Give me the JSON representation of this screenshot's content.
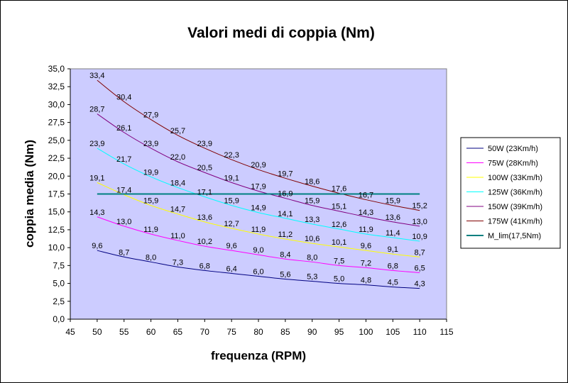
{
  "chart_data": {
    "type": "line",
    "title": "Valori medi di coppia (Nm)",
    "xlabel": "frequenza (RPM)",
    "ylabel": "coppia media (Nm)",
    "xlim": [
      45,
      115
    ],
    "ylim": [
      0,
      35
    ],
    "x_ticks": [
      "45",
      "50",
      "55",
      "60",
      "65",
      "70",
      "75",
      "80",
      "85",
      "90",
      "95",
      "100",
      "105",
      "110",
      "115"
    ],
    "y_ticks": [
      "0,0",
      "2,5",
      "5,0",
      "7,5",
      "10,0",
      "12,5",
      "15,0",
      "17,5",
      "20,0",
      "22,5",
      "25,0",
      "27,5",
      "30,0",
      "32,5",
      "35,0"
    ],
    "grid": false,
    "plot_background": "#ccccff",
    "legend_position": "right",
    "x": [
      50,
      55,
      60,
      65,
      70,
      75,
      80,
      85,
      90,
      95,
      100,
      105,
      110
    ],
    "series": [
      {
        "name": "50W (23Km/h)",
        "color": "#000080",
        "values": [
          9.6,
          8.7,
          8.0,
          7.3,
          6.8,
          6.4,
          6.0,
          5.6,
          5.3,
          5.0,
          4.8,
          4.5,
          4.3
        ],
        "labels": [
          "9,6",
          "8,7",
          "8,0",
          "7,3",
          "6,8",
          "6,4",
          "6,0",
          "5,6",
          "5,3",
          "5,0",
          "4,8",
          "4,5",
          "4,3"
        ]
      },
      {
        "name": "75W (28Km/h)",
        "color": "#ff00ff",
        "values": [
          14.3,
          13.0,
          11.9,
          11.0,
          10.2,
          9.6,
          9.0,
          8.4,
          8.0,
          7.5,
          7.2,
          6.8,
          6.5
        ],
        "labels": [
          "14,3",
          "13,0",
          "11,9",
          "11,0",
          "10,2",
          "9,6",
          "9,0",
          "8,4",
          "8,0",
          "7,5",
          "7,2",
          "6,8",
          "6,5"
        ]
      },
      {
        "name": "100W (33Km/h)",
        "color": "#ffff00",
        "values": [
          19.1,
          17.4,
          15.9,
          14.7,
          13.6,
          12.7,
          11.9,
          11.2,
          10.6,
          10.1,
          9.6,
          9.1,
          8.7
        ],
        "labels": [
          "19,1",
          "17,4",
          "15,9",
          "14,7",
          "13,6",
          "12,7",
          "11,9",
          "11,2",
          "10,6",
          "10,1",
          "9,6",
          "9,1",
          "8,7"
        ]
      },
      {
        "name": "125W (36Km/h)",
        "color": "#00ffff",
        "values": [
          23.9,
          21.7,
          19.9,
          18.4,
          17.1,
          15.9,
          14.9,
          14.1,
          13.3,
          12.6,
          11.9,
          11.4,
          10.9
        ],
        "labels": [
          "23,9",
          "21,7",
          "19,9",
          "18,4",
          "17,1",
          "15,9",
          "14,9",
          "14,1",
          "13,3",
          "12,6",
          "11,9",
          "11,4",
          "10,9"
        ]
      },
      {
        "name": "150W (39Km/h)",
        "color": "#800080",
        "values": [
          28.7,
          26.1,
          23.9,
          22.0,
          20.5,
          19.1,
          17.9,
          16.9,
          15.9,
          15.1,
          14.3,
          13.6,
          13.0
        ],
        "labels": [
          "28,7",
          "26,1",
          "23,9",
          "22,0",
          "20,5",
          "19,1",
          "17,9",
          "16,9",
          "15,9",
          "15,1",
          "14,3",
          "13,6",
          "13,0"
        ]
      },
      {
        "name": "175W (41Km/h)",
        "color": "#800000",
        "values": [
          33.4,
          30.4,
          27.9,
          25.7,
          23.9,
          22.3,
          20.9,
          19.7,
          18.6,
          17.6,
          16.7,
          15.9,
          15.2
        ],
        "labels": [
          "33,4",
          "30,4",
          "27,9",
          "25,7",
          "23,9",
          "22,3",
          "20,9",
          "19,7",
          "18,6",
          "17,6",
          "16,7",
          "15,9",
          "15,2"
        ]
      },
      {
        "name": "M_lim(17,5Nm)",
        "color": "#008080",
        "thick": true,
        "x": [
          50,
          110
        ],
        "values": [
          17.5,
          17.5
        ]
      }
    ]
  }
}
